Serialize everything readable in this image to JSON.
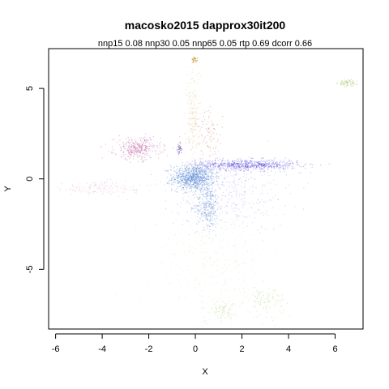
{
  "chart_data": {
    "type": "scatter",
    "title": "macosko2015 dapprox30it200",
    "subtitle": "nnp15 0.08 nnp30 0.05 nnp65 0.05 rtp 0.69 dcorr 0.66",
    "xlabel": "X",
    "ylabel": "Y",
    "xlim": [
      -6.3,
      7.2
    ],
    "ylim": [
      -8.3,
      7.2
    ],
    "xticks": [
      -6,
      -4,
      -2,
      0,
      2,
      4,
      6
    ],
    "yticks": [
      -5,
      0,
      5
    ],
    "grid": false,
    "legend": "none",
    "clusters": [
      {
        "color": "#4a7fd0",
        "cx": -0.1,
        "cy": 0.1,
        "sx": 0.45,
        "sy": 0.35,
        "n": 900,
        "alpha": 0.35
      },
      {
        "color": "#3b6fc9",
        "cx": 0.5,
        "cy": -1.5,
        "sx": 0.25,
        "sy": 0.6,
        "n": 300,
        "alpha": 0.3
      },
      {
        "color": "#3a2fd6",
        "cx": 2.2,
        "cy": 0.8,
        "sx": 1.1,
        "sy": 0.15,
        "n": 700,
        "alpha": 0.3
      },
      {
        "color": "#4a3fd8",
        "cx": 1.5,
        "cy": -0.8,
        "sx": 1.2,
        "sy": 1.0,
        "n": 400,
        "alpha": 0.18
      },
      {
        "color": "#b0388a",
        "cx": -2.5,
        "cy": 1.7,
        "sx": 0.5,
        "sy": 0.3,
        "n": 350,
        "alpha": 0.3
      },
      {
        "color": "#c85aa0",
        "cx": -4.0,
        "cy": -0.5,
        "sx": 1.2,
        "sy": 0.2,
        "n": 150,
        "alpha": 0.2
      },
      {
        "color": "#a3c24a",
        "cx": 0.6,
        "cy": -4.5,
        "sx": 1.2,
        "sy": 2.0,
        "n": 450,
        "alpha": 0.15
      },
      {
        "color": "#8fbf3a",
        "cx": 3.0,
        "cy": -6.7,
        "sx": 0.4,
        "sy": 0.4,
        "n": 120,
        "alpha": 0.25
      },
      {
        "color": "#8fbf3a",
        "cx": 1.1,
        "cy": -7.2,
        "sx": 0.3,
        "sy": 0.25,
        "n": 80,
        "alpha": 0.25
      },
      {
        "color": "#c8a43a",
        "cx": -0.1,
        "cy": 3.3,
        "sx": 0.15,
        "sy": 1.5,
        "n": 250,
        "alpha": 0.2
      },
      {
        "color": "#c8a43a",
        "cx": -0.05,
        "cy": 6.6,
        "sx": 0.06,
        "sy": 0.08,
        "n": 40,
        "alpha": 0.5
      },
      {
        "color": "#b8422a",
        "cx": 0.6,
        "cy": 2.5,
        "sx": 0.3,
        "sy": 0.7,
        "n": 80,
        "alpha": 0.3
      },
      {
        "color": "#8dc040",
        "cx": 6.5,
        "cy": 5.3,
        "sx": 0.2,
        "sy": 0.1,
        "n": 60,
        "alpha": 0.4
      },
      {
        "color": "#5a3aa0",
        "cx": -0.7,
        "cy": 1.7,
        "sx": 0.05,
        "sy": 0.15,
        "n": 30,
        "alpha": 0.5
      }
    ]
  }
}
